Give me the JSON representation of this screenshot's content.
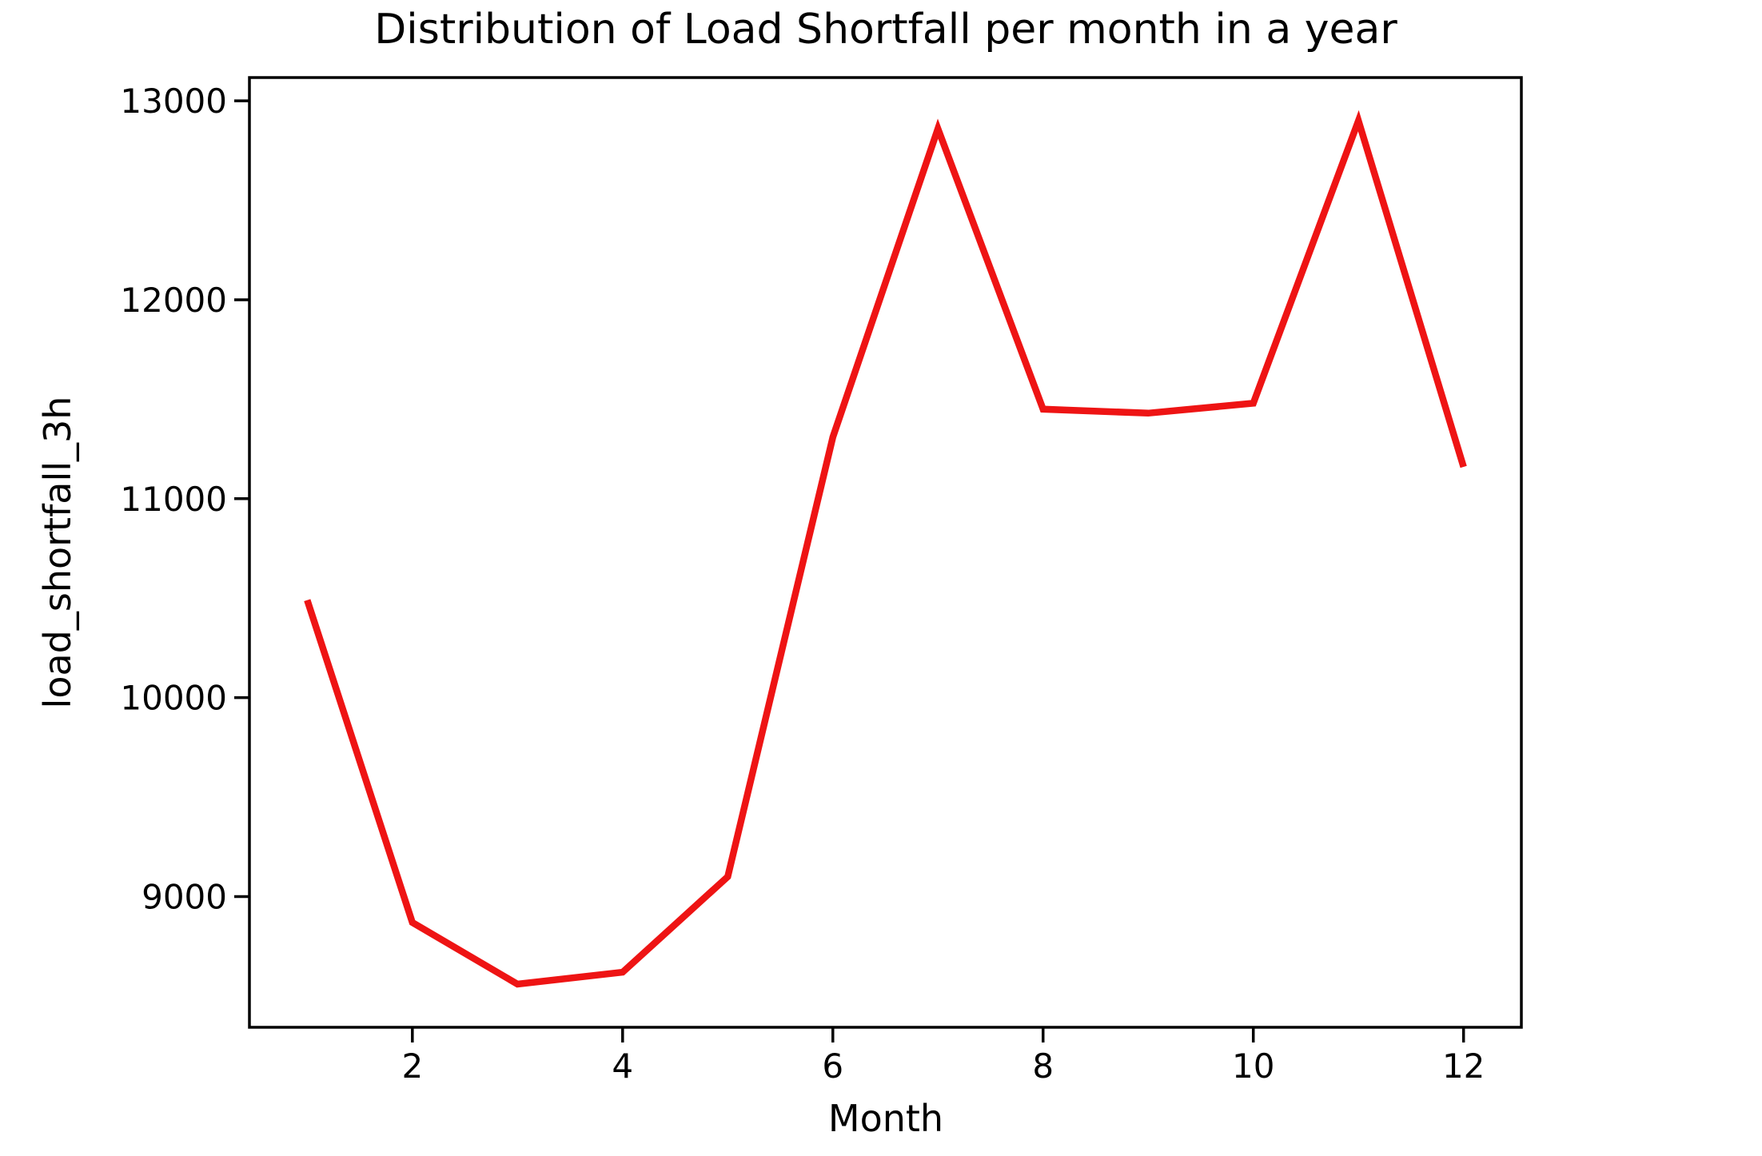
{
  "chart_data": {
    "type": "line",
    "title": "Distribution of Load Shortfall per month in a year",
    "xlabel": "Month",
    "ylabel": "load_shortfall_3h",
    "series_name": "load_shortfall_3h",
    "x": [
      1,
      2,
      3,
      4,
      5,
      6,
      7,
      8,
      9,
      10,
      11,
      12
    ],
    "y": [
      10490,
      8870,
      8560,
      8620,
      9100,
      11310,
      12860,
      11450,
      11430,
      11480,
      12900,
      11160
    ],
    "xticks": [
      2,
      4,
      6,
      8,
      10,
      12
    ],
    "yticks": [
      9000,
      10000,
      11000,
      12000,
      13000
    ],
    "xlim": [
      0.45,
      12.55
    ],
    "ylim": [
      8343,
      13117
    ],
    "grid": false,
    "legend_position": "none",
    "line_color": "#ee1414",
    "axis_color": "#000000",
    "text_color": "#000000",
    "background_color": "#ffffff"
  }
}
